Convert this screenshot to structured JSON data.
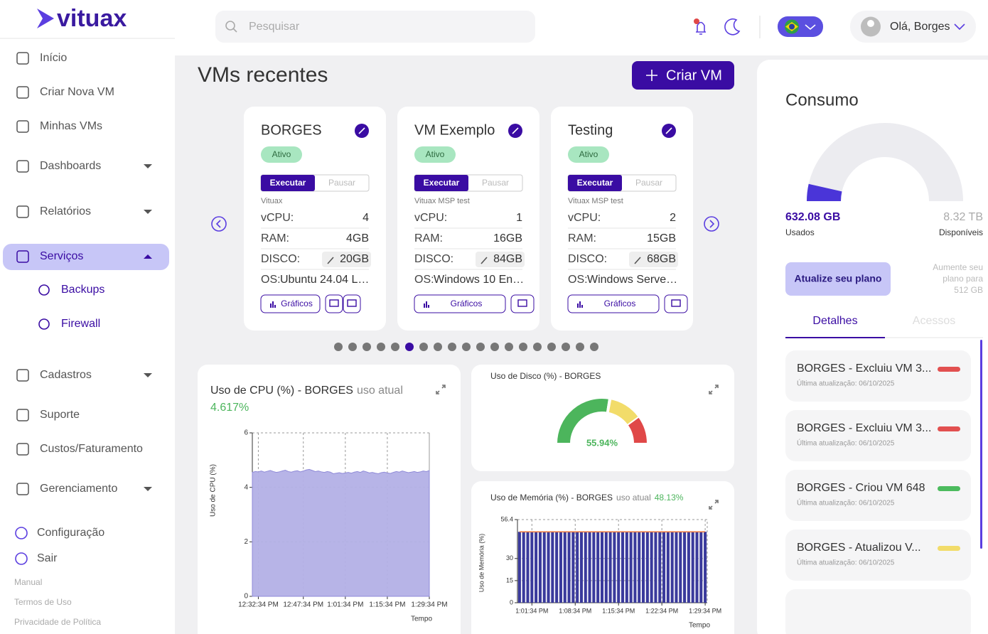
{
  "brand": "vituax",
  "search": {
    "placeholder": "Pesquisar"
  },
  "user": {
    "greeting": "Olá, Borges"
  },
  "sidebar": {
    "items": [
      {
        "label": "Início"
      },
      {
        "label": "Criar Nova VM"
      },
      {
        "label": "Minhas VMs"
      },
      {
        "label": "Dashboards",
        "expandable": true
      },
      {
        "label": "Relatórios",
        "expandable": true
      },
      {
        "label": "Serviços",
        "expandable": true,
        "active": true,
        "children": [
          {
            "label": "Backups"
          },
          {
            "label": "Firewall"
          }
        ]
      },
      {
        "label": "Cadastros",
        "expandable": true
      },
      {
        "label": "Suporte"
      },
      {
        "label": "Custos/Faturamento"
      },
      {
        "label": "Gerenciamento",
        "expandable": true
      }
    ],
    "bottom": [
      {
        "label": "Configuração"
      },
      {
        "label": "Sair"
      }
    ],
    "links": [
      "Manual",
      "Termos de Uso",
      "Privacidade de Política"
    ]
  },
  "vms": {
    "title": "VMs recentes",
    "create": "Criar VM",
    "field_labels": {
      "vcpu": "vCPU:",
      "ram": "RAM:",
      "disk": "DISCO:",
      "os": "OS:"
    },
    "cards": [
      {
        "name": "BORGES",
        "status": "Ativo",
        "run": "Executar",
        "pause": "Pausar",
        "org": "Vituax",
        "vcpu": 4,
        "ram": "4GB",
        "disk": "20GB",
        "os": "Ubuntu 24.04 L…",
        "charts": "Gráficos",
        "terminal": true
      },
      {
        "name": "VM Exemplo",
        "status": "Ativo",
        "run": "Executar",
        "pause": "Pausar",
        "org": "Vituax MSP test",
        "vcpu": 1,
        "ram": "16GB",
        "disk": "84GB",
        "os": "Windows 10 En…",
        "charts": "Gráficos",
        "terminal": false
      },
      {
        "name": "Testing",
        "status": "Ativo",
        "run": "Executar",
        "pause": "Pausar",
        "org": "Vituax MSP test",
        "vcpu": 2,
        "ram": "15GB",
        "disk": "68GB",
        "os": "Windows Serve…",
        "charts": "Gráficos",
        "terminal": false
      }
    ],
    "pages": 19,
    "active_page": 5
  },
  "consumo": {
    "title": "Consumo",
    "upgrade": "Atualize seu plano",
    "upgrade_note": [
      "Aumente seu",
      "plano para",
      "512 GB"
    ],
    "tabs": [
      "Detalhes",
      "Acessos"
    ],
    "active_tab": 0,
    "activity": [
      {
        "title": "BORGES - Excluiu VM 3...",
        "updated": "Última atualização: 06/10/2025",
        "color": "#e25050"
      },
      {
        "title": "BORGES - Excluiu VM 3...",
        "updated": "Última atualização: 06/10/2025",
        "color": "#e25050"
      },
      {
        "title": "BORGES - Criou VM 648",
        "updated": "Última atualização: 06/10/2025",
        "color": "#4cbb5e"
      },
      {
        "title": "BORGES - Atualizou V...",
        "updated": "Última atualização: 06/10/2025",
        "color": "#f2dc6a"
      }
    ]
  },
  "chart_data": [
    {
      "type": "area",
      "title": "Uso de CPU (%) - BORGES",
      "subtitle": "uso atual",
      "annotation": "4.617%",
      "xlabel": "Tempo",
      "ylabel": "Uso de CPU (%)",
      "color": "#b3b0e6",
      "line_color": "#8f8ad8",
      "grid": true,
      "xlim": [
        0,
        59
      ],
      "xticks": [
        {
          "value": 2,
          "label": "12:32:34 PM"
        },
        {
          "value": 17,
          "label": "12:47:34 PM"
        },
        {
          "value": 31,
          "label": "1:01:34 PM"
        },
        {
          "value": 45,
          "label": "1:15:34 PM"
        },
        {
          "value": 59,
          "label": "1:29:34 PM"
        }
      ],
      "ylim": [
        0,
        6
      ],
      "yticks": [
        0,
        2,
        4,
        6
      ],
      "values": [
        4.55,
        4.58,
        4.57,
        4.6,
        4.56,
        4.59,
        4.62,
        4.58,
        4.55,
        4.57,
        4.6,
        4.63,
        4.58,
        4.56,
        4.59,
        4.61,
        4.57,
        4.6,
        4.64,
        4.66,
        4.62,
        4.58,
        4.6,
        4.57,
        4.55,
        4.58,
        4.56,
        4.5,
        4.52,
        4.54,
        4.51,
        4.53,
        4.55,
        4.52,
        4.56,
        4.58,
        4.55,
        4.6,
        4.57,
        4.53,
        4.55,
        4.52,
        4.5,
        4.54,
        4.56,
        4.53,
        4.51,
        4.55,
        4.58,
        4.56,
        4.6,
        4.57,
        4.54,
        4.56,
        4.58,
        4.55,
        4.57,
        4.6,
        4.58,
        4.617
      ]
    },
    {
      "type": "gauge",
      "title": "Uso de Disco (%) - BORGES",
      "value": 55.94,
      "value_label": "55.94%",
      "ylim": [
        0,
        100
      ],
      "bands": [
        {
          "to": 55,
          "color": "#4cb55c"
        },
        {
          "to": 80,
          "color": "#f2dc6a"
        },
        {
          "to": 100,
          "color": "#e04848"
        }
      ]
    },
    {
      "type": "bar",
      "title": "Uso de Memória (%) - BORGES",
      "subtitle": "uso atual",
      "annotation": "48.13%",
      "xlabel": "Tempo",
      "ylabel": "Uso de Memória (%)",
      "color": "#3a3a9c",
      "line_color": "#e8743b",
      "grid": true,
      "xlim": [
        -0.5,
        45.5
      ],
      "xticks": [
        {
          "value": 3,
          "label": "1:01:34 PM"
        },
        {
          "value": 13.5,
          "label": "1:08:34 PM"
        },
        {
          "value": 24,
          "label": "1:15:34 PM"
        },
        {
          "value": 34.5,
          "label": "1:22:34 PM"
        },
        {
          "value": 45,
          "label": "1:29:34 PM"
        }
      ],
      "ylim": [
        0,
        56.4
      ],
      "yticks": [
        0,
        15,
        30,
        56.4
      ],
      "values": [
        48.1,
        48.1,
        48.1,
        48.1,
        48.1,
        48.1,
        48.1,
        48.1,
        48.1,
        48.1,
        48.1,
        48.1,
        48.1,
        48.1,
        48.1,
        48.1,
        48.1,
        48.1,
        48.1,
        48.1,
        48.1,
        48.1,
        48.1,
        48.1,
        48.1,
        48.1,
        48.1,
        48.1,
        48.1,
        48.1,
        48.1,
        48.1,
        48.1,
        48.1,
        48.1,
        48.1,
        48.1,
        48.1,
        48.1,
        48.1,
        48.1,
        48.1,
        48.1,
        48.1,
        48.1,
        48.13
      ]
    },
    {
      "type": "usage",
      "used": 632.08,
      "used_label": "632.08 GB",
      "used_caption": "Usados",
      "available": 8320,
      "available_label": "8.32 TB",
      "available_caption": "Disponíveis",
      "color": "#4a35d8",
      "rest_color": "#ececf0"
    }
  ]
}
